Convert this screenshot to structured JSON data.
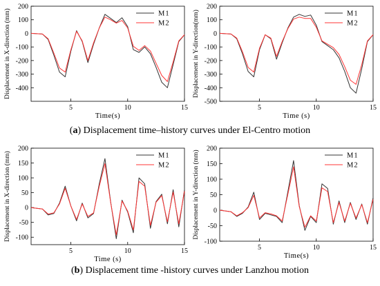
{
  "figure": {
    "caption_a_label": "a",
    "caption_a_text": " Displacement time–history curves under El-Centro motion",
    "caption_b_label": "b",
    "caption_b_text": " Displacement time -history curves under Lanzhou motion"
  },
  "colors": {
    "M1": "#333333",
    "M2": "#ff3333"
  },
  "chart_data": [
    {
      "type": "line",
      "panel": "a-left",
      "xlabel": "Time(s)",
      "ylabel": "Displacement in X-direction (mm)",
      "xlim": [
        1.5,
        15
      ],
      "ylim": [
        -500,
        200
      ],
      "xticks": [
        5,
        10,
        15
      ],
      "yticks": [
        -400,
        -300,
        -200,
        -100,
        0,
        100,
        200
      ],
      "legend": "top-right",
      "series": [
        {
          "name": "M1",
          "x": [
            1.5,
            2.5,
            3.0,
            3.5,
            4.0,
            4.5,
            5.0,
            5.5,
            6.0,
            6.5,
            7.0,
            7.5,
            8.0,
            8.5,
            9.0,
            9.5,
            10.0,
            10.5,
            11.0,
            11.5,
            12.0,
            12.5,
            13.0,
            13.5,
            14.0,
            14.5,
            15.0
          ],
          "y": [
            0,
            -5,
            -45,
            -160,
            -285,
            -320,
            -130,
            20,
            -60,
            -215,
            -80,
            40,
            140,
            110,
            80,
            115,
            50,
            -120,
            -140,
            -100,
            -150,
            -250,
            -360,
            -400,
            -230,
            -60,
            -10
          ]
        },
        {
          "name": "M2",
          "x": [
            1.5,
            2.5,
            3.0,
            3.5,
            4.0,
            4.5,
            5.0,
            5.5,
            6.0,
            6.5,
            7.0,
            7.5,
            8.0,
            8.5,
            9.0,
            9.5,
            10.0,
            10.5,
            11.0,
            11.5,
            12.0,
            12.5,
            13.0,
            13.5,
            14.0,
            14.5,
            15.0
          ],
          "y": [
            0,
            -5,
            -40,
            -145,
            -255,
            -285,
            -120,
            15,
            -55,
            -200,
            -70,
            40,
            120,
            100,
            75,
            95,
            40,
            -95,
            -125,
            -90,
            -130,
            -220,
            -310,
            -355,
            -210,
            -55,
            -10
          ]
        }
      ]
    },
    {
      "type": "line",
      "panel": "a-right",
      "xlabel": "Time (s)",
      "ylabel": "Displacement in Y-direction(mm)",
      "xlim": [
        1.5,
        15
      ],
      "ylim": [
        -500,
        200
      ],
      "xticks": [
        5,
        10,
        15
      ],
      "yticks": [
        -500,
        -400,
        -300,
        -200,
        -100,
        0,
        100,
        200
      ],
      "legend": "top-right",
      "series": [
        {
          "name": "M1",
          "x": [
            1.5,
            2.5,
            3.0,
            3.5,
            4.0,
            4.5,
            5.0,
            5.5,
            6.0,
            6.5,
            7.0,
            7.5,
            8.0,
            8.5,
            9.0,
            9.5,
            10.0,
            10.5,
            11.0,
            11.5,
            12.0,
            12.5,
            13.0,
            13.5,
            14.0,
            14.5,
            15.0
          ],
          "y": [
            0,
            -5,
            -40,
            -150,
            -280,
            -320,
            -120,
            -10,
            -40,
            -190,
            -70,
            40,
            120,
            140,
            125,
            135,
            60,
            -60,
            -90,
            -120,
            -180,
            -280,
            -400,
            -440,
            -260,
            -60,
            -10
          ]
        },
        {
          "name": "M2",
          "x": [
            1.5,
            2.5,
            3.0,
            3.5,
            4.0,
            4.5,
            5.0,
            5.5,
            6.0,
            6.5,
            7.0,
            7.5,
            8.0,
            8.5,
            9.0,
            9.5,
            10.0,
            10.5,
            11.0,
            11.5,
            12.0,
            12.5,
            13.0,
            13.5,
            14.0,
            14.5,
            15.0
          ],
          "y": [
            0,
            -5,
            -35,
            -135,
            -250,
            -285,
            -110,
            -10,
            -35,
            -170,
            -60,
            35,
            105,
            120,
            110,
            110,
            45,
            -55,
            -80,
            -105,
            -155,
            -245,
            -345,
            -375,
            -230,
            -55,
            -10
          ]
        }
      ]
    },
    {
      "type": "line",
      "panel": "b-left",
      "xlabel": "Time (s)",
      "ylabel": "Displacement in X-direction (mm)",
      "xlim": [
        1.5,
        15
      ],
      "ylim": [
        -125,
        200
      ],
      "xticks": [
        5,
        10,
        15
      ],
      "yticks": [
        -100,
        -50,
        0,
        50,
        100,
        150,
        200
      ],
      "legend": "top-right",
      "series": [
        {
          "name": "M1",
          "x": [
            1.5,
            2.5,
            3.0,
            3.5,
            4.0,
            4.5,
            5.0,
            5.5,
            6.0,
            6.5,
            7.0,
            7.5,
            8.0,
            8.5,
            9.0,
            9.5,
            10.0,
            10.5,
            11.0,
            11.5,
            12.0,
            12.5,
            13.0,
            13.5,
            14.0,
            14.5,
            15.0
          ],
          "y": [
            0,
            -5,
            -25,
            -20,
            15,
            72,
            5,
            -45,
            15,
            -35,
            -20,
            80,
            165,
            20,
            -105,
            25,
            -15,
            -85,
            100,
            80,
            -70,
            20,
            45,
            -55,
            60,
            -65,
            60
          ]
        },
        {
          "name": "M2",
          "x": [
            1.5,
            2.5,
            3.0,
            3.5,
            4.0,
            4.5,
            5.0,
            5.5,
            6.0,
            6.5,
            7.0,
            7.5,
            8.0,
            8.5,
            9.0,
            9.5,
            10.0,
            10.5,
            11.0,
            11.5,
            12.0,
            12.5,
            13.0,
            13.5,
            14.0,
            14.5,
            15.0
          ],
          "y": [
            0,
            -5,
            -22,
            -18,
            12,
            65,
            5,
            -40,
            12,
            -30,
            -18,
            72,
            148,
            18,
            -92,
            22,
            -12,
            -75,
            88,
            72,
            -60,
            18,
            40,
            -48,
            52,
            -55,
            55
          ]
        }
      ]
    },
    {
      "type": "line",
      "panel": "b-right",
      "xlabel": "Time(s)",
      "ylabel": "Displacement in Y-direction (mm)",
      "xlim": [
        1.5,
        15
      ],
      "ylim": [
        -100,
        200
      ],
      "xticks": [
        5,
        10,
        15
      ],
      "yticks": [
        -100,
        -50,
        0,
        50,
        100,
        150,
        200
      ],
      "legend": "top-right",
      "series": [
        {
          "name": "M1",
          "x": [
            1.5,
            2.5,
            3.0,
            3.5,
            4.0,
            4.5,
            5.0,
            5.5,
            6.0,
            6.5,
            7.0,
            7.5,
            8.0,
            8.5,
            9.0,
            9.5,
            10.0,
            10.5,
            11.0,
            11.5,
            12.0,
            12.5,
            13.0,
            13.5,
            14.0,
            14.5,
            15.0
          ],
          "y": [
            0,
            -5,
            -20,
            -10,
            10,
            58,
            -30,
            -10,
            -15,
            -20,
            -40,
            60,
            160,
            15,
            -65,
            -20,
            -40,
            85,
            70,
            -45,
            30,
            -40,
            25,
            -30,
            20,
            -45,
            40
          ]
        },
        {
          "name": "M2",
          "x": [
            1.5,
            2.5,
            3.0,
            3.5,
            4.0,
            4.5,
            5.0,
            5.5,
            6.0,
            6.5,
            7.0,
            7.5,
            8.0,
            8.5,
            9.0,
            9.5,
            10.0,
            10.5,
            11.0,
            11.5,
            12.0,
            12.5,
            13.0,
            13.5,
            14.0,
            14.5,
            15.0
          ],
          "y": [
            0,
            -5,
            -18,
            -8,
            8,
            48,
            -25,
            -8,
            -12,
            -18,
            -35,
            52,
            140,
            12,
            -55,
            -18,
            -35,
            72,
            60,
            -40,
            25,
            -35,
            22,
            -25,
            18,
            -40,
            35
          ]
        }
      ]
    }
  ]
}
